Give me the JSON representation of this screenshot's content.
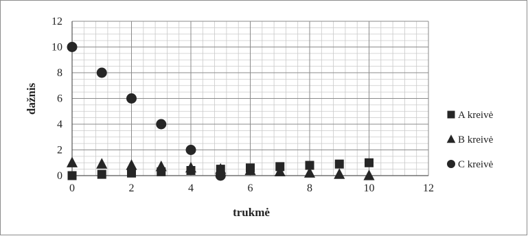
{
  "chart_data": {
    "type": "scatter",
    "xlabel": "trukmė",
    "ylabel": "dažnis",
    "xlim": [
      0,
      12
    ],
    "ylim": [
      0,
      12
    ],
    "x_ticks": [
      0,
      2,
      4,
      6,
      8,
      10,
      12
    ],
    "y_ticks": [
      0,
      2,
      4,
      6,
      8,
      10,
      12
    ],
    "grid": true,
    "legend_position": "right",
    "series": [
      {
        "name": "A kreivė",
        "marker": "square",
        "color": "#262626",
        "points": [
          [
            0,
            0
          ],
          [
            1,
            0.1
          ],
          [
            2,
            0.2
          ],
          [
            3,
            0.3
          ],
          [
            4,
            0.4
          ],
          [
            5,
            0.5
          ],
          [
            6,
            0.6
          ],
          [
            7,
            0.7
          ],
          [
            8,
            0.8
          ],
          [
            9,
            0.9
          ],
          [
            10,
            1.0
          ]
        ]
      },
      {
        "name": "B kreivė",
        "marker": "triangle",
        "color": "#262626",
        "points": [
          [
            0,
            1.0
          ],
          [
            1,
            0.9
          ],
          [
            2,
            0.8
          ],
          [
            3,
            0.7
          ],
          [
            4,
            0.6
          ],
          [
            5,
            0.5
          ],
          [
            6,
            0.4
          ],
          [
            7,
            0.3
          ],
          [
            8,
            0.2
          ],
          [
            9,
            0.1
          ],
          [
            10,
            0
          ]
        ]
      },
      {
        "name": "C kreivė",
        "marker": "circle",
        "color": "#262626",
        "points": [
          [
            0,
            10
          ],
          [
            1,
            8
          ],
          [
            2,
            6
          ],
          [
            3,
            4
          ],
          [
            4,
            2
          ],
          [
            5,
            0
          ]
        ]
      }
    ]
  }
}
